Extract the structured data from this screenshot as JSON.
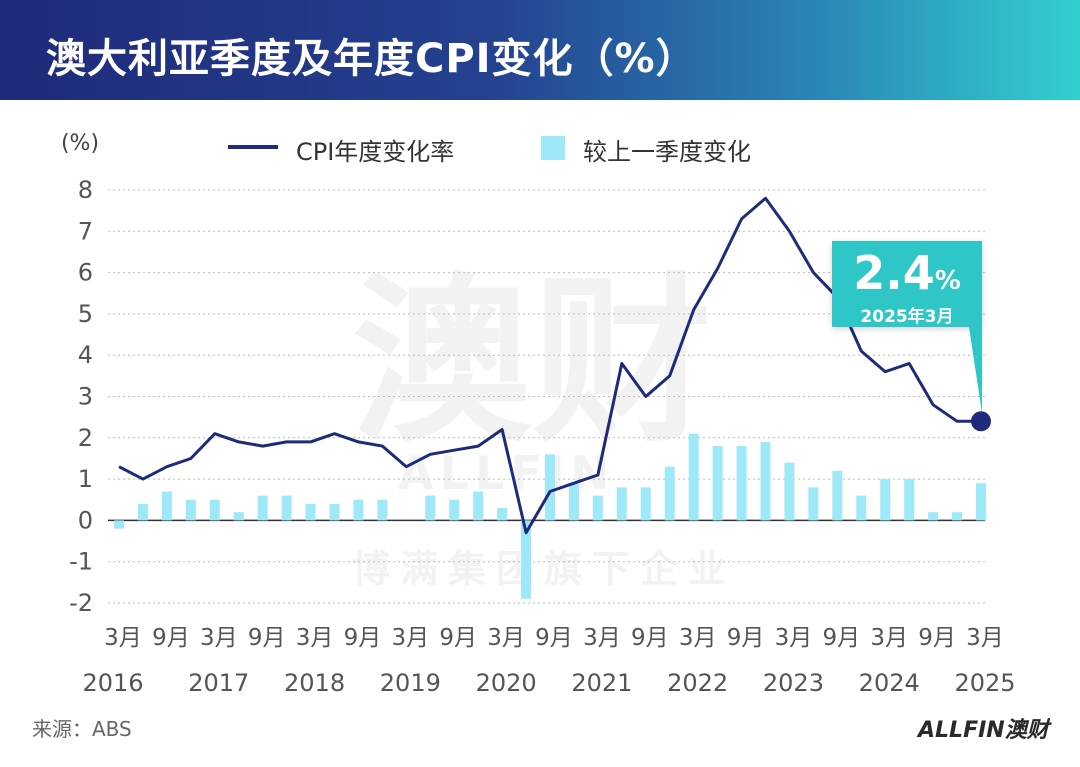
{
  "header": {
    "title": "澳大利亚季度及年度CPI变化（%）"
  },
  "legend": {
    "line_label": "CPI年度变化率",
    "bar_label": "较上一季度变化"
  },
  "callout": {
    "value": "2.4",
    "unit": "%",
    "date": "2025年3月"
  },
  "source": "来源：ABS",
  "logo_text": "ALLFIN澳财",
  "watermark": {
    "main": "澳财",
    "brand": "ALLFIN",
    "sub": "博满集团旗下企业"
  },
  "colors": {
    "header_start": "#1f2a7a",
    "header_end": "#33cfcf",
    "line": "#1f2a7a",
    "bar": "#9ee9f9",
    "callout": "#2ec6c6"
  },
  "chart_data": {
    "type": "line+bar",
    "ylabel": "(%)",
    "ylim": [
      -2,
      8
    ],
    "yticks": [
      "8",
      "7",
      "6",
      "5",
      "4",
      "3",
      "2",
      "1",
      "0",
      "-1",
      "-2"
    ],
    "xticks_month": [
      "3月",
      "9月",
      "3月",
      "9月",
      "3月",
      "9月",
      "3月",
      "9月",
      "3月",
      "9月",
      "3月",
      "9月",
      "3月",
      "9月",
      "3月",
      "9月",
      "3月",
      "9月",
      "3月"
    ],
    "xticks_year": [
      "2016",
      "2017",
      "2018",
      "2019",
      "2020",
      "2021",
      "2022",
      "2023",
      "2024",
      "2025"
    ],
    "grid": true,
    "legend_position": "top",
    "x": [
      "2016-03",
      "2016-06",
      "2016-09",
      "2016-12",
      "2017-03",
      "2017-06",
      "2017-09",
      "2017-12",
      "2018-03",
      "2018-06",
      "2018-09",
      "2018-12",
      "2019-03",
      "2019-06",
      "2019-09",
      "2019-12",
      "2020-03",
      "2020-06",
      "2020-09",
      "2020-12",
      "2021-03",
      "2021-06",
      "2021-09",
      "2021-12",
      "2022-03",
      "2022-06",
      "2022-09",
      "2022-12",
      "2023-03",
      "2023-06",
      "2023-09",
      "2023-12",
      "2024-03",
      "2024-06",
      "2024-09",
      "2024-12",
      "2025-03"
    ],
    "series": [
      {
        "name": "CPI年度变化率",
        "type": "line",
        "values": [
          1.3,
          1.0,
          1.3,
          1.5,
          2.1,
          1.9,
          1.8,
          1.9,
          1.9,
          2.1,
          1.9,
          1.8,
          1.3,
          1.6,
          1.7,
          1.8,
          2.2,
          -0.3,
          0.7,
          0.9,
          1.1,
          3.8,
          3.0,
          3.5,
          5.1,
          6.1,
          7.3,
          7.8,
          7.0,
          6.0,
          5.4,
          4.1,
          3.6,
          3.8,
          2.8,
          2.4,
          2.4
        ]
      },
      {
        "name": "较上一季度变化",
        "type": "bar",
        "values": [
          -0.2,
          0.4,
          0.7,
          0.5,
          0.5,
          0.2,
          0.6,
          0.6,
          0.4,
          0.4,
          0.5,
          0.5,
          0.0,
          0.6,
          0.5,
          0.7,
          0.3,
          -1.9,
          1.6,
          0.9,
          0.6,
          0.8,
          0.8,
          1.3,
          2.1,
          1.8,
          1.8,
          1.9,
          1.4,
          0.8,
          1.2,
          0.6,
          1.0,
          1.0,
          0.2,
          0.2,
          0.9
        ]
      }
    ]
  }
}
